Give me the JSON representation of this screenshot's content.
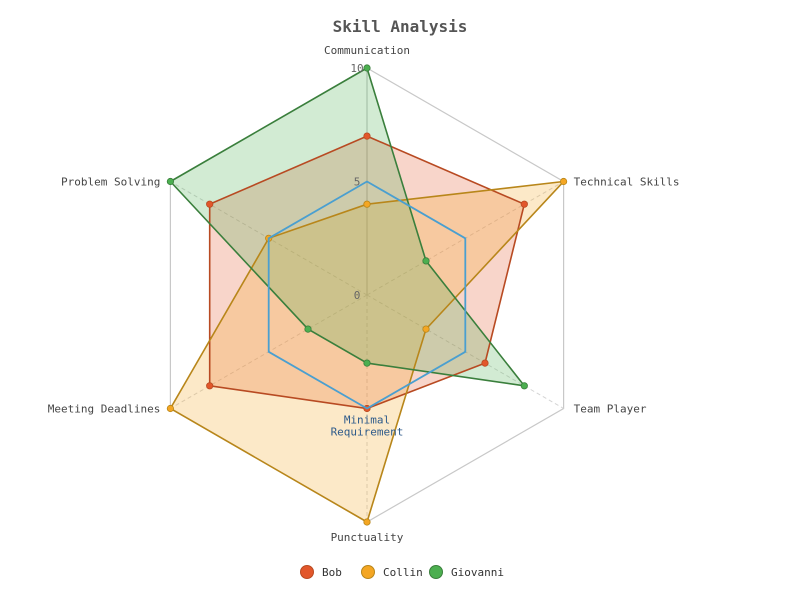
{
  "chart_data": {
    "type": "radar",
    "title": "Skill Analysis",
    "axes": [
      "Communication",
      "Technical Skills",
      "Team Player",
      "Punctuality",
      "Meeting Deadlines",
      "Problem Solving"
    ],
    "range": [
      0,
      10
    ],
    "ticks": [
      "0",
      "5",
      "10"
    ],
    "series": [
      {
        "name": "Bob",
        "values": [
          7,
          8,
          6,
          5,
          8,
          8
        ],
        "color": "#e2572b"
      },
      {
        "name": "Collin",
        "values": [
          4,
          10,
          3,
          10,
          10,
          5
        ],
        "color": "#f4a623"
      },
      {
        "name": "Giovanni",
        "values": [
          10,
          3,
          8,
          3,
          3,
          10
        ],
        "color": "#4caf50"
      }
    ],
    "reference": {
      "label_line1": "Minimal",
      "label_line2": "Requirement",
      "values": [
        5,
        5,
        5,
        5,
        5,
        5
      ],
      "color": "#4a9fd0"
    },
    "legend_position": "bottom"
  }
}
